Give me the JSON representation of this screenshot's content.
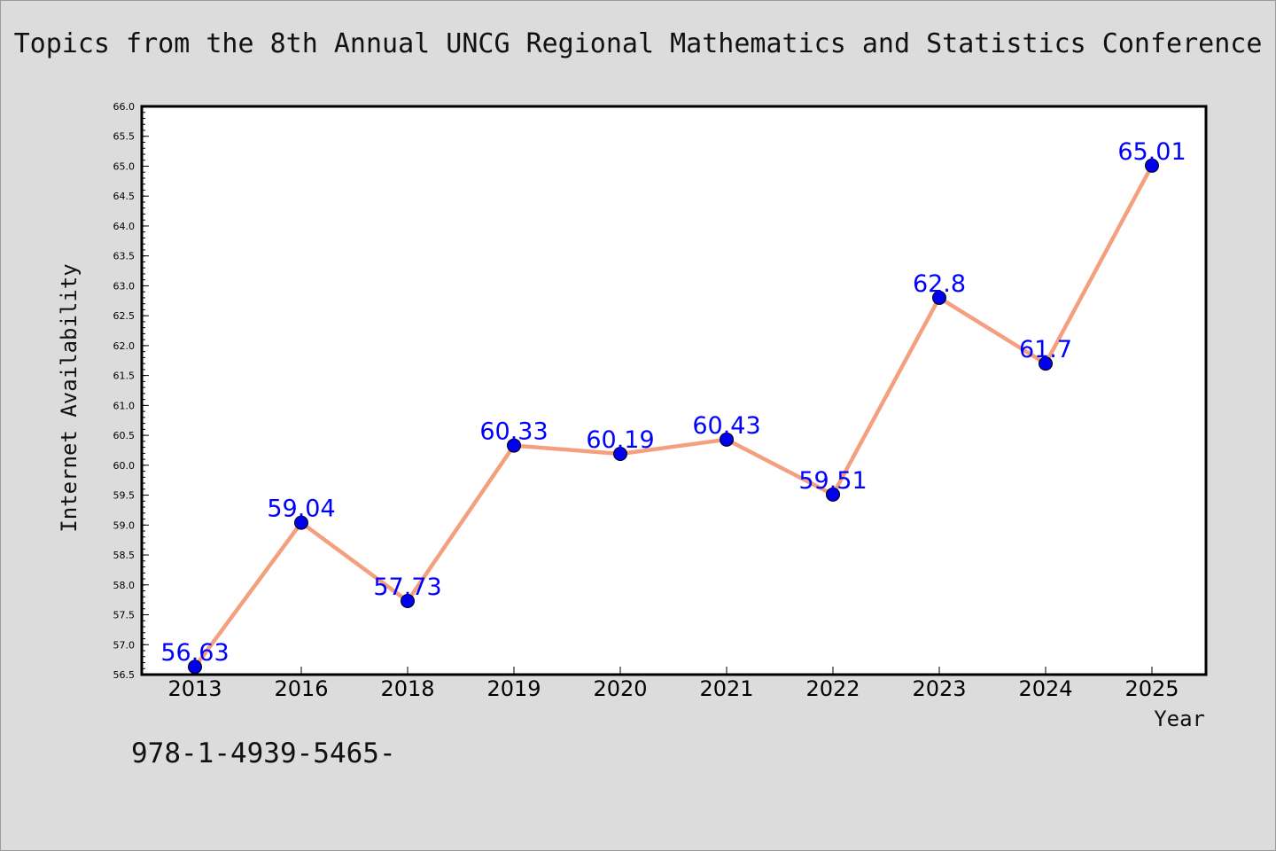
{
  "title": "Topics from the 8th Annual UNCG Regional Mathematics and Statistics Conference",
  "footer_text": "978-1-4939-5465-",
  "colors": {
    "background": "#dcdcdc",
    "plot_background": "#ffffff",
    "line": "#f4a07e",
    "marker": "#0000ee",
    "data_label": "#0000ff"
  },
  "chart_data": {
    "type": "line",
    "title": "Topics from the 8th Annual UNCG Regional Mathematics and Statistics Conference",
    "xlabel": "Year",
    "ylabel": "Internet Availability",
    "categories": [
      "2013",
      "2016",
      "2018",
      "2019",
      "2020",
      "2021",
      "2022",
      "2023",
      "2024",
      "2025"
    ],
    "series": [
      {
        "values": [
          56.63,
          59.04,
          57.73,
          60.33,
          60.19,
          60.43,
          59.51,
          62.8,
          61.7,
          65.01
        ]
      }
    ],
    "data_labels": [
      "56.63",
      "59.04",
      "57.73",
      "60.33",
      "60.19",
      "60.43",
      "59.51",
      "62.8",
      "61.7",
      "65.01"
    ],
    "ylim": [
      56.5,
      66.0
    ],
    "yticks": [
      "56.5",
      "57.0",
      "57.5",
      "58.0",
      "58.5",
      "59.0",
      "59.5",
      "60.0",
      "60.5",
      "61.0",
      "61.5",
      "62.0",
      "62.5",
      "63.0",
      "63.5",
      "64.0",
      "64.5",
      "65.0",
      "65.5",
      "66.0"
    ],
    "grid": false,
    "legend": "none"
  }
}
